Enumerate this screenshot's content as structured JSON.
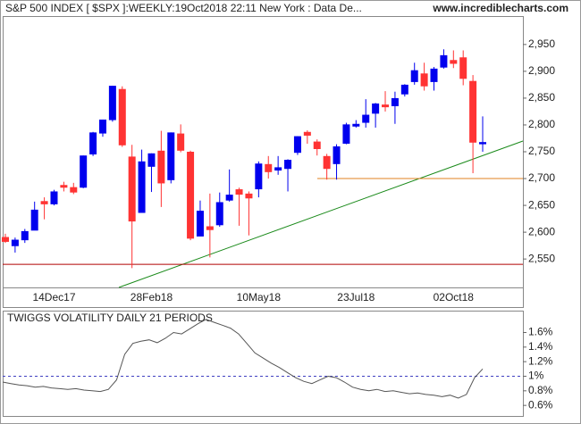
{
  "chart_data": [
    {
      "type": "candlestick",
      "title": "S&P 500 INDEX [ $SPX ]:WEEKLY:19Oct2018 22:11 New York : Data De...",
      "source": "www.incrediblecharts.com",
      "categories": [
        null,
        null,
        null,
        null,
        null,
        "14Dec17",
        null,
        null,
        null,
        null,
        null,
        null,
        null,
        null,
        null,
        "28Feb18",
        null,
        null,
        null,
        null,
        null,
        null,
        null,
        null,
        null,
        null,
        "10May18",
        null,
        null,
        null,
        null,
        null,
        null,
        null,
        null,
        null,
        "23Jul18",
        null,
        null,
        null,
        null,
        null,
        null,
        null,
        null,
        null,
        "02Oct18",
        null,
        null,
        null
      ],
      "open": [
        2591,
        2574,
        2585,
        2603,
        2658,
        2652,
        2688,
        2684,
        2683,
        2745,
        2784,
        2809,
        2867,
        2741,
        2636,
        2722,
        2752,
        2697,
        2784,
        2750,
        2592,
        2611,
        2613,
        2659,
        2680,
        2672,
        2680,
        2727,
        2715,
        2718,
        2748,
        2787,
        2769,
        2742,
        2727,
        2765,
        2797,
        2804,
        2821,
        2838,
        2835,
        2857,
        2880,
        2896,
        2880,
        2907,
        2921,
        2926,
        2882,
        2764
      ],
      "high": [
        2597,
        2590,
        2606,
        2657,
        2665,
        2679,
        2694,
        2692,
        2743,
        2787,
        2810,
        2873,
        2872,
        2763,
        2754,
        2747,
        2789,
        2786,
        2801,
        2752,
        2659,
        2672,
        2674,
        2717,
        2683,
        2676,
        2732,
        2742,
        2742,
        2736,
        2779,
        2790,
        2773,
        2746,
        2764,
        2804,
        2809,
        2848,
        2841,
        2863,
        2862,
        2876,
        2916,
        2916,
        2908,
        2941,
        2939,
        2939,
        2893,
        2816
      ],
      "low": [
        2580,
        2562,
        2580,
        2605,
        2624,
        2650,
        2676,
        2671,
        2682,
        2742,
        2778,
        2806,
        2759,
        2533,
        2637,
        2675,
        2647,
        2691,
        2749,
        2585,
        2593,
        2553,
        2610,
        2657,
        2612,
        2594,
        2665,
        2700,
        2707,
        2676,
        2744,
        2765,
        2743,
        2698,
        2698,
        2764,
        2795,
        2795,
        2795,
        2825,
        2802,
        2853,
        2875,
        2864,
        2864,
        2905,
        2906,
        2874,
        2710,
        2750
      ],
      "close": [
        2582,
        2586,
        2602,
        2642,
        2652,
        2676,
        2683,
        2674,
        2743,
        2786,
        2810,
        2873,
        2762,
        2620,
        2732,
        2747,
        2691,
        2786,
        2752,
        2588,
        2640,
        2604,
        2656,
        2670,
        2670,
        2663,
        2728,
        2712,
        2721,
        2735,
        2779,
        2780,
        2755,
        2718,
        2760,
        2801,
        2802,
        2819,
        2840,
        2833,
        2850,
        2875,
        2902,
        2872,
        2905,
        2930,
        2914,
        2886,
        2767,
        2768
      ],
      "up_color": "#0000ee",
      "down_color": "#ff3333",
      "hlines": [
        {
          "value": 2540,
          "color": "#b00000"
        },
        {
          "value": 2700,
          "color": "#e08020"
        }
      ],
      "ylim": [
        2497,
        3003
      ],
      "yticks": [
        {
          "value": 2550,
          "label": "2,550"
        },
        {
          "value": 2600,
          "label": "2,600"
        },
        {
          "value": 2650,
          "label": "2,650"
        },
        {
          "value": 2700,
          "label": "2,700"
        },
        {
          "value": 2750,
          "label": "2,750"
        },
        {
          "value": 2800,
          "label": "2,800"
        },
        {
          "value": 2850,
          "label": "2,850"
        },
        {
          "value": 2900,
          "label": "2,900"
        },
        {
          "value": 2950,
          "label": "2,950"
        }
      ]
    },
    {
      "type": "line",
      "title": "TWIGGS VOLATILITY DAILY 21 PERIODS",
      "color": "#555555",
      "values": [
        0.92,
        0.9,
        0.88,
        0.87,
        0.85,
        0.86,
        0.84,
        0.83,
        0.82,
        0.83,
        0.81,
        0.8,
        0.79,
        0.82,
        0.95,
        1.3,
        1.45,
        1.48,
        1.5,
        1.46,
        1.52,
        1.6,
        1.58,
        1.65,
        1.72,
        1.78,
        1.74,
        1.7,
        1.66,
        1.58,
        1.45,
        1.32,
        1.25,
        1.18,
        1.12,
        1.05,
        0.98,
        0.93,
        0.9,
        0.95,
        1.0,
        0.98,
        0.92,
        0.85,
        0.82,
        0.8,
        0.82,
        0.79,
        0.8,
        0.78,
        0.76,
        0.77,
        0.75,
        0.74,
        0.72,
        0.74,
        0.7,
        0.75,
        0.98,
        1.1
      ],
      "refline": 1,
      "refline_color": "#4040c0",
      "ylim": [
        0.455,
        1.9
      ],
      "yticks": [
        {
          "value": 0.6,
          "label": "0.6%"
        },
        {
          "value": 0.8,
          "label": "0.8%"
        },
        {
          "value": 1,
          "label": "1%"
        },
        {
          "value": 1.2,
          "label": "1.2%"
        },
        {
          "value": 1.4,
          "label": "1.4%"
        },
        {
          "value": 1.6,
          "label": "1.6%"
        }
      ]
    }
  ]
}
